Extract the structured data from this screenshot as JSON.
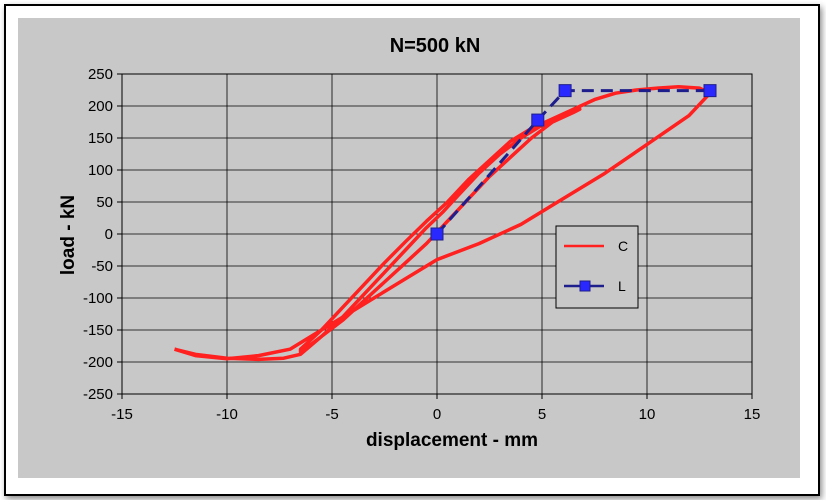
{
  "chart_data": {
    "type": "line",
    "title": "N=500 kN",
    "xlabel": "displacement - mm",
    "ylabel": "load - kN",
    "xlim": [
      -15,
      15
    ],
    "ylim": [
      -250,
      250
    ],
    "xticks": [
      -15,
      -10,
      -5,
      0,
      5,
      10,
      15
    ],
    "yticks": [
      -250,
      -200,
      -150,
      -100,
      -50,
      0,
      50,
      100,
      150,
      200,
      250
    ],
    "grid": true,
    "legend_position": "right",
    "series": [
      {
        "name": "C",
        "color": "#ff2020",
        "marker": "none",
        "style": "solid",
        "x": [
          -12.5,
          -11.5,
          -10,
          -8.5,
          -7.3,
          -6.5,
          -5.5,
          -4.5,
          -3.5,
          -2.5,
          -1.5,
          -0.5,
          0.3,
          1,
          2,
          3,
          4,
          5,
          6,
          6.8,
          6.5,
          5.5,
          4.5,
          3.5,
          2.5,
          1.5,
          0.5,
          -0.5,
          -1.5,
          -2.5,
          -3.5,
          -4.5,
          -5.5,
          -6.5,
          -6.5,
          -5.5,
          -4.5,
          -3.5,
          -2.5,
          -1.5,
          -0.5,
          0.5,
          1.5,
          2.5,
          3.5,
          4.5,
          5.5,
          6.5,
          7.5,
          8.5,
          9.5,
          10.5,
          11.5,
          12.5,
          13,
          12,
          10,
          8,
          6,
          4,
          2,
          0,
          -1.5,
          -3,
          -4.5,
          -6,
          -7,
          -8.5,
          -10,
          -11.5,
          -12.5
        ],
        "y": [
          -180,
          -188,
          -194,
          -196,
          -194,
          -188,
          -160,
          -130,
          -95,
          -60,
          -25,
          10,
          35,
          60,
          95,
          125,
          150,
          170,
          185,
          195,
          190,
          175,
          150,
          120,
          90,
          55,
          20,
          -15,
          -45,
          -75,
          -105,
          -135,
          -160,
          -185,
          -180,
          -150,
          -115,
          -80,
          -45,
          -12,
          20,
          50,
          85,
          115,
          145,
          165,
          180,
          195,
          210,
          220,
          225,
          228,
          230,
          228,
          220,
          185,
          140,
          95,
          55,
          15,
          -15,
          -40,
          -70,
          -100,
          -130,
          -160,
          -180,
          -190,
          -195,
          -190,
          -180
        ]
      },
      {
        "name": "L",
        "color": "#1e1e8c",
        "marker": "square",
        "marker_color": "#2828ff",
        "style": "dashed",
        "x": [
          0,
          4.8,
          6.1,
          13
        ],
        "y": [
          0,
          178,
          224,
          224
        ]
      }
    ]
  }
}
